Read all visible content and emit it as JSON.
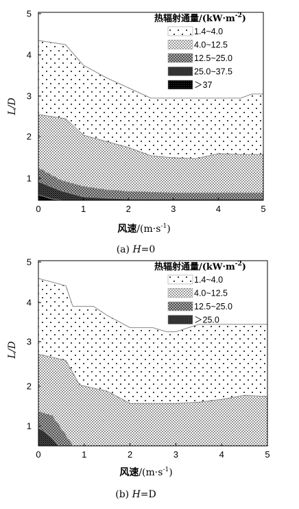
{
  "chart_data": [
    {
      "type": "area",
      "panel_label": "(a)",
      "caption_var": "H",
      "caption_val": "=0",
      "xlabel_main": "风速",
      "xlabel_unit": "/(m·s",
      "xlabel_unit_sup": "-1",
      "xlabel_unit_end": ")",
      "ylabel": "L/D",
      "xlim": [
        0,
        5
      ],
      "ylim": [
        0.4,
        5
      ],
      "x_ticks": [
        "0",
        "1",
        "2",
        "3",
        "4",
        "5"
      ],
      "y_ticks": [
        "1",
        "2",
        "3",
        "4",
        "5"
      ],
      "legend_title": "热辐射通量/(kW·m",
      "legend_title_sup": "-2",
      "legend_title_end": ")",
      "legend": [
        "1.4~4.0",
        "4.0~12.5",
        "12.5~25.0",
        "25.0~37.5",
        "＞37"
      ],
      "legend_patterns": [
        "dots-sparse",
        "dots-dense",
        "crosshatch",
        "crosshatch-dense",
        "solid"
      ],
      "series": [
        {
          "name": "1.4~4.0",
          "x": [
            0,
            0.6,
            1.0,
            1.5,
            2.0,
            2.5,
            3.0,
            3.5,
            4.0,
            4.5,
            4.75,
            5.0
          ],
          "y": [
            4.35,
            4.25,
            3.75,
            3.45,
            3.2,
            2.95,
            2.95,
            2.95,
            2.95,
            2.95,
            3.05,
            3.05
          ]
        },
        {
          "name": "4.0~12.5",
          "x": [
            0,
            0.6,
            1.0,
            1.5,
            2.0,
            2.5,
            3.0,
            3.5,
            4.0,
            4.5,
            5.0
          ],
          "y": [
            2.55,
            2.45,
            2.05,
            1.9,
            1.75,
            1.55,
            1.5,
            1.48,
            1.6,
            1.58,
            1.58
          ]
        },
        {
          "name": "12.5~25.0",
          "x": [
            0,
            0.5,
            1.0,
            1.5,
            2.0,
            2.5,
            3.0,
            3.5,
            4.0,
            4.5,
            5.0
          ],
          "y": [
            1.25,
            0.95,
            0.8,
            0.72,
            0.68,
            0.66,
            0.65,
            0.65,
            0.65,
            0.65,
            0.65
          ]
        },
        {
          "name": "25.0~37.5",
          "x": [
            0,
            0.5,
            1.0,
            1.5,
            2.0,
            2.5,
            3.0,
            3.5,
            4.0,
            4.5,
            5.0
          ],
          "y": [
            0.92,
            0.7,
            0.55,
            0.52,
            0.5,
            0.5,
            0.5,
            0.5,
            0.5,
            0.5,
            0.5
          ]
        },
        {
          "name": "＞37",
          "x": [
            0,
            0.3,
            0.55,
            0.8
          ],
          "y": [
            0.6,
            0.5,
            0.44,
            0.42
          ]
        }
      ]
    },
    {
      "type": "area",
      "panel_label": "(b)",
      "caption_var": "H",
      "caption_val": "=D",
      "xlabel_main": "风速",
      "xlabel_unit": "/(m·s",
      "xlabel_unit_sup": "-1",
      "xlabel_unit_end": ")",
      "ylabel": "L/D",
      "xlim": [
        0,
        5
      ],
      "ylim": [
        0.5,
        5
      ],
      "x_ticks": [
        "0",
        "1",
        "2",
        "3",
        "4",
        "5"
      ],
      "y_ticks": [
        "1",
        "2",
        "3",
        "4",
        "5"
      ],
      "legend_title": "热辐射通量/(kW·m",
      "legend_title_sup": "-2",
      "legend_title_end": ")",
      "legend": [
        "1.4~4.0",
        "4.0~12.5",
        "12.5~25.0",
        "＞25.0"
      ],
      "legend_patterns": [
        "dots-sparse",
        "dots-dense",
        "crosshatch",
        "crosshatch-dense"
      ],
      "series": [
        {
          "name": "1.4~4.0",
          "x": [
            0,
            0.6,
            0.75,
            1.2,
            1.5,
            2.0,
            2.5,
            2.8,
            3.0,
            3.5,
            4.0,
            4.5,
            5.0
          ],
          "y": [
            4.6,
            4.42,
            3.92,
            3.92,
            3.7,
            3.4,
            3.4,
            3.3,
            3.3,
            3.48,
            3.48,
            3.48,
            3.48
          ]
        },
        {
          "name": "4.0~12.5",
          "x": [
            0,
            0.6,
            0.9,
            1.5,
            2.0,
            2.5,
            3.0,
            3.5,
            4.0,
            4.5,
            5.0
          ],
          "y": [
            2.75,
            2.6,
            2.0,
            1.85,
            1.55,
            1.55,
            1.55,
            1.58,
            1.65,
            1.75,
            1.72
          ]
        },
        {
          "name": "12.5~25.0",
          "x": [
            0,
            0.3,
            0.55,
            0.75
          ],
          "y": [
            1.35,
            1.25,
            0.85,
            0.5
          ]
        },
        {
          "name": "＞25.0",
          "x": [
            0,
            0.15,
            0.3,
            0.45
          ],
          "y": [
            0.95,
            0.85,
            0.7,
            0.5
          ]
        }
      ]
    }
  ]
}
